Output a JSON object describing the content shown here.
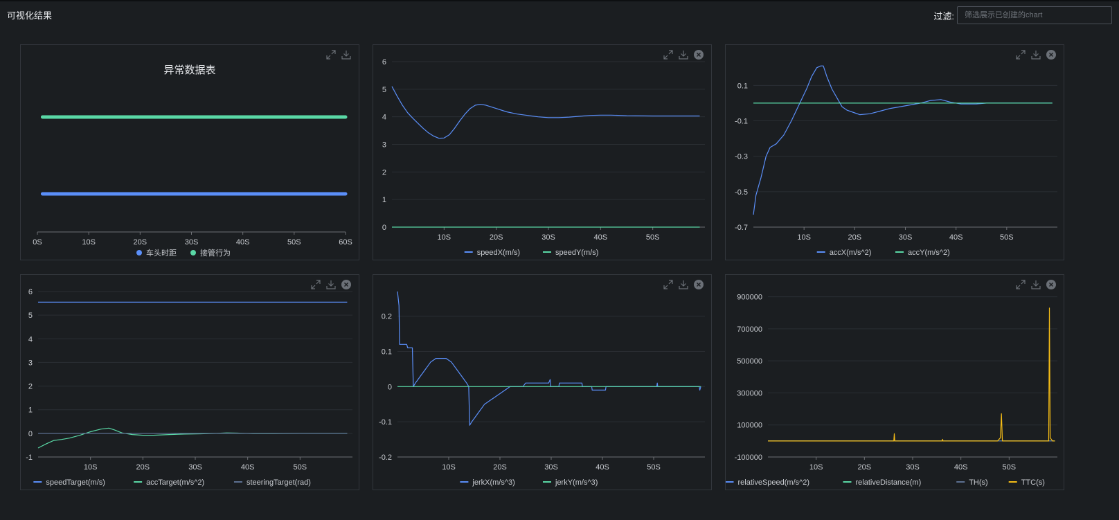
{
  "header": {
    "title": "可视化结果",
    "filter_label": "过滤:",
    "filter_placeholder": "筛选展示已创建的chart",
    "filter_value": ""
  },
  "colors": {
    "background": "#1b1e21",
    "blue": "#5b8ff9",
    "green": "#5ad8a6",
    "slate": "#5d7092",
    "yellow": "#f6bd16",
    "grid": "#2b2f34",
    "axis": "#6e7075",
    "text": "#c9ccd1"
  },
  "icons": {
    "expand": "expand-icon",
    "download": "download-icon",
    "close": "close-icon"
  },
  "chart_data": [
    {
      "id": "anomaly",
      "type": "line",
      "title": "异常数据表",
      "x_ticks": [
        "0S",
        "10S",
        "20S",
        "30S",
        "40S",
        "50S",
        "60S"
      ],
      "xlim": [
        0,
        60
      ],
      "series": [
        {
          "name": "车头时距",
          "color": "#5b8ff9",
          "y_level": 1,
          "x": [
            1,
            60
          ]
        },
        {
          "name": "接管行为",
          "color": "#5ad8a6",
          "y_level": 2,
          "x": [
            1,
            60
          ]
        }
      ],
      "legend_style": "dot",
      "closable": false
    },
    {
      "id": "speed",
      "type": "line",
      "x_ticks": [
        "10S",
        "20S",
        "30S",
        "40S",
        "50S"
      ],
      "xlim": [
        0,
        60
      ],
      "ylim": [
        0,
        6
      ],
      "y_ticks": [
        "0",
        "1",
        "2",
        "3",
        "4",
        "5",
        "6"
      ],
      "y_tick_values": [
        0,
        1,
        2,
        3,
        4,
        5,
        6
      ],
      "series": [
        {
          "name": "speedX(m/s)",
          "color": "#5b8ff9",
          "points": [
            [
              0,
              5.1
            ],
            [
              1,
              4.75
            ],
            [
              2,
              4.42
            ],
            [
              3,
              4.15
            ],
            [
              4,
              3.95
            ],
            [
              5,
              3.76
            ],
            [
              6,
              3.58
            ],
            [
              7,
              3.42
            ],
            [
              8,
              3.3
            ],
            [
              9,
              3.22
            ],
            [
              10,
              3.23
            ],
            [
              11,
              3.35
            ],
            [
              12,
              3.58
            ],
            [
              13,
              3.85
            ],
            [
              14,
              4.1
            ],
            [
              15,
              4.3
            ],
            [
              16,
              4.42
            ],
            [
              17,
              4.45
            ],
            [
              18,
              4.42
            ],
            [
              20,
              4.3
            ],
            [
              22,
              4.18
            ],
            [
              24,
              4.1
            ],
            [
              26,
              4.05
            ],
            [
              28,
              4.0
            ],
            [
              30,
              3.97
            ],
            [
              32,
              3.97
            ],
            [
              34,
              3.99
            ],
            [
              36,
              4.02
            ],
            [
              38,
              4.05
            ],
            [
              40,
              4.06
            ],
            [
              42,
              4.06
            ],
            [
              45,
              4.04
            ],
            [
              50,
              4.03
            ],
            [
              55,
              4.03
            ],
            [
              59,
              4.03
            ]
          ]
        },
        {
          "name": "speedY(m/s)",
          "color": "#5ad8a6",
          "points": [
            [
              0,
              0
            ],
            [
              59,
              0
            ]
          ]
        }
      ],
      "closable": true
    },
    {
      "id": "acc",
      "type": "line",
      "x_ticks": [
        "10S",
        "20S",
        "30S",
        "40S",
        "50S"
      ],
      "xlim": [
        0,
        60
      ],
      "ylim": [
        -0.7,
        0.25
      ],
      "y_ticks": [
        "0.1",
        "-0.1",
        "-0.3",
        "-0.5",
        "-0.7"
      ],
      "y_tick_values": [
        0.1,
        -0.1,
        -0.3,
        -0.5,
        -0.7
      ],
      "series": [
        {
          "name": "accX(m/s^2)",
          "color": "#5b8ff9",
          "points": [
            [
              0,
              -0.63
            ],
            [
              0.5,
              -0.52
            ],
            [
              1.5,
              -0.42
            ],
            [
              2.5,
              -0.3
            ],
            [
              3.3,
              -0.25
            ],
            [
              4.5,
              -0.23
            ],
            [
              6,
              -0.18
            ],
            [
              7.5,
              -0.1
            ],
            [
              9,
              -0.01
            ],
            [
              10.5,
              0.08
            ],
            [
              11.5,
              0.15
            ],
            [
              12.5,
              0.2
            ],
            [
              13.3,
              0.21
            ],
            [
              13.8,
              0.21
            ],
            [
              14.5,
              0.15
            ],
            [
              15.5,
              0.08
            ],
            [
              16.5,
              0.03
            ],
            [
              17.5,
              -0.02
            ],
            [
              18.5,
              -0.04
            ],
            [
              20,
              -0.055
            ],
            [
              21,
              -0.065
            ],
            [
              23,
              -0.06
            ],
            [
              25,
              -0.045
            ],
            [
              27,
              -0.03
            ],
            [
              29,
              -0.02
            ],
            [
              31,
              -0.01
            ],
            [
              33,
              0.0
            ],
            [
              35,
              0.015
            ],
            [
              37,
              0.02
            ],
            [
              39,
              0.005
            ],
            [
              41,
              -0.005
            ],
            [
              44,
              -0.005
            ],
            [
              46,
              0.0
            ],
            [
              59,
              0.0
            ]
          ]
        },
        {
          "name": "accY(m/s^2)",
          "color": "#5ad8a6",
          "points": [
            [
              0,
              0
            ],
            [
              59,
              0
            ]
          ]
        }
      ],
      "closable": true
    },
    {
      "id": "target",
      "type": "line",
      "x_ticks": [
        "10S",
        "20S",
        "30S",
        "40S",
        "50S"
      ],
      "xlim": [
        0,
        60
      ],
      "ylim": [
        -1,
        6
      ],
      "y_ticks": [
        "-1",
        "0",
        "1",
        "2",
        "3",
        "4",
        "5",
        "6"
      ],
      "y_tick_values": [
        -1,
        0,
        1,
        2,
        3,
        4,
        5,
        6
      ],
      "series": [
        {
          "name": "speedTarget(m/s)",
          "color": "#5b8ff9",
          "points": [
            [
              0,
              5.55
            ],
            [
              59,
              5.55
            ]
          ]
        },
        {
          "name": "accTarget(m/s^2)",
          "color": "#5ad8a6",
          "points": [
            [
              0,
              -0.62
            ],
            [
              1.5,
              -0.45
            ],
            [
              3,
              -0.3
            ],
            [
              4.5,
              -0.26
            ],
            [
              6,
              -0.2
            ],
            [
              8,
              -0.08
            ],
            [
              10,
              0.07
            ],
            [
              12,
              0.18
            ],
            [
              13.5,
              0.22
            ],
            [
              14.5,
              0.15
            ],
            [
              16,
              0.02
            ],
            [
              18,
              -0.05
            ],
            [
              20,
              -0.08
            ],
            [
              22,
              -0.08
            ],
            [
              25,
              -0.05
            ],
            [
              28,
              -0.03
            ],
            [
              31,
              -0.02
            ],
            [
              34,
              0.0
            ],
            [
              36,
              0.02
            ],
            [
              38,
              0.01
            ],
            [
              41,
              -0.01
            ],
            [
              45,
              -0.01
            ],
            [
              50,
              0.0
            ],
            [
              59,
              0.0
            ]
          ]
        },
        {
          "name": "steeringTarget(rad)",
          "color": "#5d7092",
          "points": [
            [
              0,
              0
            ],
            [
              59,
              0
            ]
          ]
        }
      ],
      "closable": true
    },
    {
      "id": "jerk",
      "type": "line",
      "x_ticks": [
        "10S",
        "20S",
        "30S",
        "40S",
        "50S"
      ],
      "xlim": [
        0,
        60
      ],
      "ylim": [
        -0.2,
        0.27
      ],
      "y_ticks": [
        "0.2",
        "0.1",
        "0",
        "-0.1",
        "-0.2"
      ],
      "y_tick_values": [
        0.2,
        0.1,
        0,
        -0.1,
        -0.2
      ],
      "series": [
        {
          "name": "jerkX(m/s^3)",
          "color": "#5b8ff9",
          "points": [
            [
              0,
              0.27
            ],
            [
              0.3,
              0.23
            ],
            [
              0.4,
              0.12
            ],
            [
              1.8,
              0.12
            ],
            [
              2,
              0.11
            ],
            [
              2.9,
              0.11
            ],
            [
              3.1,
              0.0
            ],
            [
              3.5,
              0.01
            ],
            [
              4,
              0.02
            ],
            [
              4.5,
              0.03
            ],
            [
              5,
              0.04
            ],
            [
              5.5,
              0.05
            ],
            [
              6,
              0.06
            ],
            [
              6.5,
              0.07
            ],
            [
              7,
              0.075
            ],
            [
              7.5,
              0.08
            ],
            [
              9.5,
              0.08
            ],
            [
              10,
              0.075
            ],
            [
              10.5,
              0.07
            ],
            [
              11,
              0.06
            ],
            [
              11.5,
              0.05
            ],
            [
              12,
              0.04
            ],
            [
              12.5,
              0.03
            ],
            [
              13,
              0.02
            ],
            [
              13.5,
              0.01
            ],
            [
              13.9,
              0.0
            ],
            [
              14.1,
              -0.11
            ],
            [
              14.5,
              -0.1
            ],
            [
              15,
              -0.09
            ],
            [
              15.5,
              -0.08
            ],
            [
              16,
              -0.07
            ],
            [
              16.5,
              -0.06
            ],
            [
              17,
              -0.05
            ],
            [
              17.5,
              -0.045
            ],
            [
              18,
              -0.04
            ],
            [
              18.5,
              -0.035
            ],
            [
              19,
              -0.03
            ],
            [
              19.5,
              -0.025
            ],
            [
              20,
              -0.02
            ],
            [
              20.5,
              -0.015
            ],
            [
              21,
              -0.01
            ],
            [
              21.5,
              -0.005
            ],
            [
              22,
              0.0
            ],
            [
              24.5,
              0.0
            ],
            [
              25,
              0.01
            ],
            [
              29.5,
              0.01
            ],
            [
              29.8,
              0.02
            ],
            [
              29.9,
              0.0
            ],
            [
              31.5,
              0.0
            ],
            [
              31.6,
              0.01
            ],
            [
              36,
              0.01
            ],
            [
              36.1,
              0.0
            ],
            [
              37.9,
              0.0
            ],
            [
              38,
              -0.01
            ],
            [
              40.6,
              -0.01
            ],
            [
              40.7,
              0.0
            ],
            [
              50.6,
              0.0
            ],
            [
              50.7,
              0.01
            ],
            [
              50.8,
              0.0
            ],
            [
              58.9,
              0.0
            ],
            [
              59,
              -0.01
            ],
            [
              59.2,
              0.0
            ]
          ]
        },
        {
          "name": "jerkY(m/s^3)",
          "color": "#5ad8a6",
          "points": [
            [
              0,
              0
            ],
            [
              59.2,
              0
            ]
          ]
        }
      ],
      "closable": true
    },
    {
      "id": "relative",
      "type": "line",
      "x_ticks": [
        "10S",
        "20S",
        "30S",
        "40S",
        "50S"
      ],
      "xlim": [
        0,
        60
      ],
      "ylim": [
        -100000,
        950000
      ],
      "y_ticks": [
        "900000",
        "700000",
        "500000",
        "300000",
        "100000",
        "-100000"
      ],
      "y_tick_values": [
        900000,
        700000,
        500000,
        300000,
        100000,
        -100000
      ],
      "series": [
        {
          "name": "relativeSpeed(m/s^2)",
          "color": "#5b8ff9",
          "points": [
            [
              0,
              0
            ],
            [
              59.5,
              0
            ]
          ]
        },
        {
          "name": "relativeDistance(m)",
          "color": "#5ad8a6",
          "points": [
            [
              0,
              0
            ],
            [
              59.5,
              0
            ]
          ]
        },
        {
          "name": "TH(s)",
          "color": "#5d7092",
          "points": [
            [
              0,
              0
            ],
            [
              59.5,
              0
            ]
          ]
        },
        {
          "name": "TTC(s)",
          "color": "#f6bd16",
          "points": [
            [
              0,
              0
            ],
            [
              26.1,
              0
            ],
            [
              26.2,
              45000
            ],
            [
              26.3,
              0
            ],
            [
              36.1,
              0
            ],
            [
              36.2,
              10000
            ],
            [
              36.3,
              0
            ],
            [
              47.6,
              0
            ],
            [
              48.2,
              20000
            ],
            [
              48.4,
              170000
            ],
            [
              48.6,
              0
            ],
            [
              58.2,
              0
            ],
            [
              58.35,
              830000
            ],
            [
              58.5,
              20000
            ],
            [
              59,
              0
            ],
            [
              59.5,
              0
            ]
          ]
        }
      ],
      "closable": true
    }
  ]
}
